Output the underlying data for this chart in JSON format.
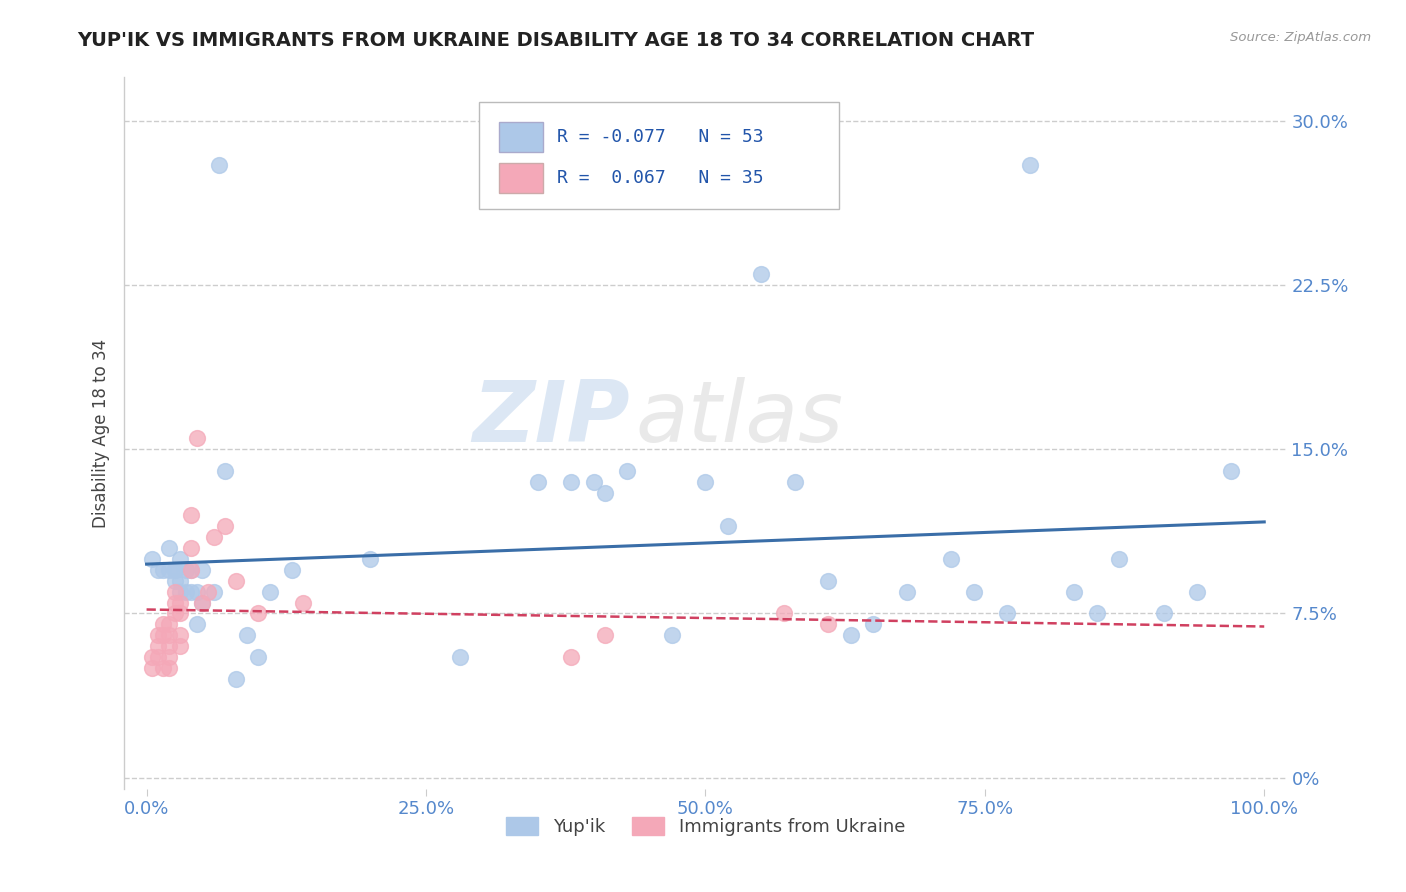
{
  "title": "YUP'IK VS IMMIGRANTS FROM UKRAINE DISABILITY AGE 18 TO 34 CORRELATION CHART",
  "source": "Source: ZipAtlas.com",
  "xlabel": "",
  "ylabel": "Disability Age 18 to 34",
  "xlim": [
    -0.02,
    1.02
  ],
  "ylim": [
    -0.005,
    0.32
  ],
  "yticks": [
    0.0,
    0.075,
    0.15,
    0.225,
    0.3
  ],
  "ytick_labels": [
    "0%",
    "7.5%",
    "15.0%",
    "22.5%",
    "30.0%"
  ],
  "xticks": [
    0.0,
    0.25,
    0.5,
    0.75,
    1.0
  ],
  "xtick_labels": [
    "0.0%",
    "25.0%",
    "50.0%",
    "75.0%",
    "100.0%"
  ],
  "series1_name": "Yup'ik",
  "series1_R": -0.077,
  "series1_N": 53,
  "series1_color": "#adc8e8",
  "series1_line_color": "#3a6ea8",
  "series2_name": "Immigrants from Ukraine",
  "series2_R": 0.067,
  "series2_N": 35,
  "series2_color": "#f4a8b8",
  "series2_line_color": "#d04060",
  "background_color": "#ffffff",
  "title_color": "#222222",
  "title_fontsize": 14,
  "axis_label_color": "#444444",
  "tick_label_color": "#5588cc",
  "grid_color": "#c8c8c8",
  "grid_style": "--",
  "watermark_top": "ZIP",
  "watermark_bottom": "atlas",
  "series1_x": [
    0.005,
    0.01,
    0.015,
    0.02,
    0.02,
    0.025,
    0.025,
    0.025,
    0.03,
    0.03,
    0.03,
    0.035,
    0.035,
    0.04,
    0.04,
    0.045,
    0.045,
    0.05,
    0.05,
    0.06,
    0.065,
    0.07,
    0.08,
    0.09,
    0.1,
    0.11,
    0.13,
    0.2,
    0.28,
    0.35,
    0.38,
    0.4,
    0.41,
    0.43,
    0.47,
    0.5,
    0.52,
    0.55,
    0.58,
    0.61,
    0.63,
    0.65,
    0.68,
    0.72,
    0.74,
    0.77,
    0.79,
    0.83,
    0.85,
    0.87,
    0.91,
    0.94,
    0.97
  ],
  "series1_y": [
    0.1,
    0.095,
    0.095,
    0.105,
    0.095,
    0.095,
    0.09,
    0.095,
    0.1,
    0.09,
    0.085,
    0.095,
    0.085,
    0.095,
    0.085,
    0.085,
    0.07,
    0.095,
    0.08,
    0.085,
    0.28,
    0.14,
    0.045,
    0.065,
    0.055,
    0.085,
    0.095,
    0.1,
    0.055,
    0.135,
    0.135,
    0.135,
    0.13,
    0.14,
    0.065,
    0.135,
    0.115,
    0.23,
    0.135,
    0.09,
    0.065,
    0.07,
    0.085,
    0.1,
    0.085,
    0.075,
    0.28,
    0.085,
    0.075,
    0.1,
    0.075,
    0.085,
    0.14
  ],
  "series2_x": [
    0.005,
    0.005,
    0.01,
    0.01,
    0.01,
    0.015,
    0.015,
    0.015,
    0.02,
    0.02,
    0.02,
    0.02,
    0.02,
    0.025,
    0.025,
    0.025,
    0.03,
    0.03,
    0.03,
    0.03,
    0.04,
    0.04,
    0.04,
    0.045,
    0.05,
    0.055,
    0.06,
    0.07,
    0.08,
    0.1,
    0.14,
    0.38,
    0.41,
    0.57,
    0.61
  ],
  "series2_y": [
    0.055,
    0.05,
    0.065,
    0.06,
    0.055,
    0.07,
    0.065,
    0.05,
    0.07,
    0.065,
    0.06,
    0.055,
    0.05,
    0.085,
    0.08,
    0.075,
    0.08,
    0.075,
    0.065,
    0.06,
    0.095,
    0.105,
    0.12,
    0.155,
    0.08,
    0.085,
    0.11,
    0.115,
    0.09,
    0.075,
    0.08,
    0.055,
    0.065,
    0.075,
    0.07
  ]
}
